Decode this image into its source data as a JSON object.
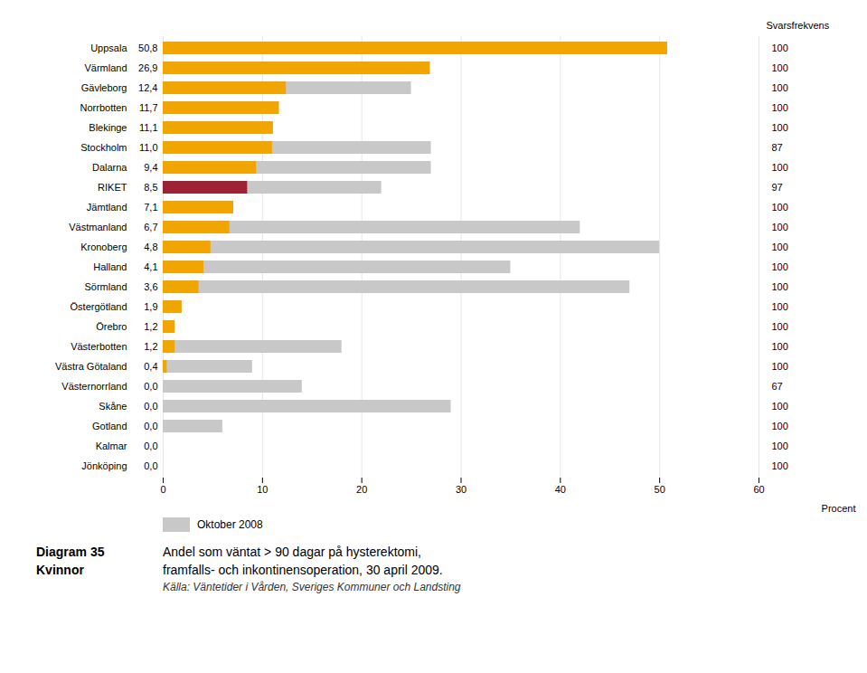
{
  "chart_data": {
    "type": "bar",
    "orientation": "horizontal",
    "title": "Diagram 35",
    "subtitle": "Kvinnor",
    "caption": [
      "Andel som väntat > 90 dagar på hysterektomi,",
      "framfalls- och inkontinensoperation, 30 april 2009."
    ],
    "source": "Källa: Väntetider i Vården, Sveriges Kommuner och Landsting",
    "xlabel": "Procent",
    "categories": [
      "Jönköping",
      "Kalmar",
      "Gotland",
      "Skåne",
      "Västernorrland",
      "Västra Götaland",
      "Västerbotten",
      "Örebro",
      "Östergötland",
      "Sörmland",
      "Halland",
      "Kronoberg",
      "Västmanland",
      "Jämtland",
      "RIKET",
      "Dalarna",
      "Stockholm",
      "Blekinge",
      "Norrbotten",
      "Gävleborg",
      "Värmland",
      "Uppsala"
    ],
    "series": [
      {
        "name": "Oktober 2008",
        "color": "#C8C8C8",
        "values": [
          null,
          null,
          6.0,
          29.0,
          14.0,
          9.0,
          18.0,
          null,
          null,
          47.0,
          35.0,
          50.0,
          42.0,
          null,
          22.0,
          27.0,
          27.0,
          null,
          null,
          25.0,
          null,
          null
        ]
      },
      {
        "colors": [
          "#F0A500",
          "#F0A500",
          "#F0A500",
          "#F0A500",
          "#F0A500",
          "#F0A500",
          "#F0A500",
          "#F0A500",
          "#F0A500",
          "#F0A500",
          "#F0A500",
          "#F0A500",
          "#F0A500",
          "#F0A500",
          "#9B2335",
          "#F0A500",
          "#F0A500",
          "#F0A500",
          "#F0A500",
          "#F0A500",
          "#F0A500",
          "#F0A500"
        ],
        "values": [
          0.0,
          0.0,
          0.0,
          0.0,
          0.0,
          0.4,
          1.2,
          1.2,
          1.9,
          3.6,
          4.1,
          4.8,
          6.7,
          7.1,
          8.5,
          9.4,
          11.0,
          11.1,
          11.7,
          12.4,
          26.9,
          50.8
        ],
        "value_labels": [
          "0,0",
          "0,0",
          "0,0",
          "0,0",
          "0,0",
          "0,4",
          "1,2",
          "1,2",
          "1,9",
          "3,6",
          "4,1",
          "4,8",
          "6,7",
          "7,1",
          "8,5",
          "9,4",
          "11,0",
          "11,1",
          "11,7",
          "12,4",
          "26,9",
          "50,8"
        ],
        "data_labels": true
      }
    ],
    "response_rate": {
      "label": "Svarsfrekvens",
      "values": [
        100,
        100,
        100,
        100,
        67,
        100,
        100,
        100,
        100,
        100,
        100,
        100,
        100,
        100,
        97,
        100,
        87,
        100,
        100,
        100,
        100,
        100
      ]
    },
    "xlim": [
      0,
      60
    ],
    "xticks": [
      0,
      10,
      20,
      30,
      40,
      50,
      60
    ],
    "grid": true,
    "legend": "bottom"
  }
}
